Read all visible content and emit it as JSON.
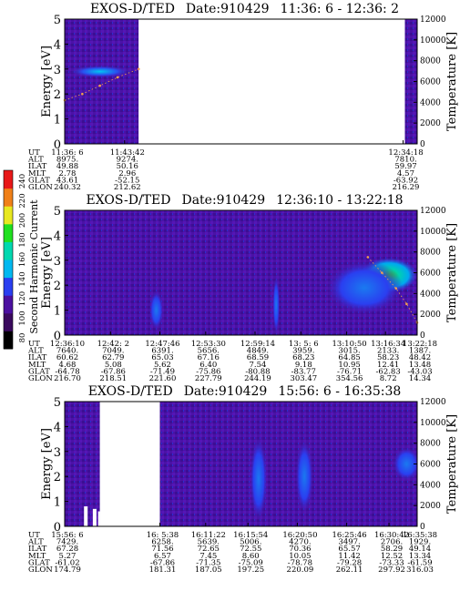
{
  "colorbar": {
    "label": "Second Harmonic Current",
    "ticks": [
      "80",
      "100",
      "120",
      "140",
      "160",
      "180",
      "200",
      "220",
      "240"
    ],
    "colors": [
      "#000000",
      "#3a0a5e",
      "#4b10a0",
      "#2a3ff0",
      "#00b8f0",
      "#00d8b0",
      "#20e020",
      "#e8e820",
      "#f08018",
      "#e81818"
    ]
  },
  "chart_data": [
    {
      "type": "heatmap",
      "title_parts": [
        "EXOS-D/TED",
        "Date:910429",
        "11:36: 6 - 12:36: 2"
      ],
      "ylabel": "Energy [eV]",
      "y2label": "Temperature [K]",
      "ylim": [
        0,
        5
      ],
      "y_ticks": [
        "0",
        "1",
        "2",
        "3",
        "4",
        "5"
      ],
      "y2lim": [
        0,
        12000
      ],
      "y2_ticks": [
        "0",
        "2000",
        "4000",
        "6000",
        "8000",
        "10000",
        "12000"
      ],
      "data_intervals": [
        [
          0.0,
          0.21
        ],
        [
          0.965,
          1.0
        ]
      ],
      "features": [
        {
          "x": 0.1,
          "y": 2.9,
          "width": 0.18,
          "height": 0.5,
          "intensity": "cyan"
        }
      ],
      "temperature_trace": [
        {
          "x": 0.0,
          "y": 4200
        },
        {
          "x": 0.05,
          "y": 4800
        },
        {
          "x": 0.1,
          "y": 5600
        },
        {
          "x": 0.15,
          "y": 6400
        },
        {
          "x": 0.21,
          "y": 7200
        }
      ],
      "table_labels": [
        "UT",
        "ALT",
        "ILAT",
        "MLT",
        "GLAT",
        "GLON"
      ],
      "table": [
        {
          "x": 0.0,
          "values": [
            "11:36: 6",
            "8975.",
            "49.88",
            "2.78",
            "43.61",
            "240.32"
          ]
        },
        {
          "x": 0.17,
          "values": [
            "11:43:42",
            "9274.",
            "50.16",
            "2.96",
            "-52.15",
            "212.62"
          ]
        },
        {
          "x": 0.96,
          "values": [
            "12:34:18",
            "7810.",
            "59.97",
            "4.57",
            "-63.92",
            "216.29"
          ]
        }
      ]
    },
    {
      "type": "heatmap",
      "title_parts": [
        "EXOS-D/TED",
        "Date:910429",
        "12:36:10 - 13:22:18"
      ],
      "ylabel": "Energy [eV]",
      "y2label": "Temperature [K]",
      "ylim": [
        0,
        5
      ],
      "y_ticks": [
        "0",
        "1",
        "2",
        "3",
        "4",
        "5"
      ],
      "y2lim": [
        0,
        12000
      ],
      "y2_ticks": [
        "0",
        "2000",
        "4000",
        "6000",
        "8000",
        "10000",
        "12000"
      ],
      "data_intervals": [
        [
          0.0,
          1.0
        ]
      ],
      "features": [
        {
          "x": 0.92,
          "y": 2.4,
          "width": 0.16,
          "height": 1.4,
          "intensity": "green"
        },
        {
          "x": 0.85,
          "y": 1.9,
          "width": 0.22,
          "height": 2.2,
          "intensity": "blue"
        },
        {
          "x": 0.6,
          "y": 1.2,
          "width": 0.02,
          "height": 2.4,
          "intensity": "blue"
        },
        {
          "x": 0.26,
          "y": 1.0,
          "width": 0.04,
          "height": 1.6,
          "intensity": "blue"
        }
      ],
      "temperature_trace": [
        {
          "x": 0.86,
          "y": 7500
        },
        {
          "x": 0.9,
          "y": 6000
        },
        {
          "x": 0.94,
          "y": 4500
        },
        {
          "x": 0.97,
          "y": 3000
        },
        {
          "x": 1.0,
          "y": 1200
        }
      ],
      "table_labels": [
        "UT",
        "ALT",
        "ILAT",
        "MLT",
        "GLAT",
        "GLON"
      ],
      "table": [
        {
          "x": 0.0,
          "values": [
            "12:36:10",
            "7640.",
            "60.62",
            "4.68",
            "-64.78",
            "216.70"
          ]
        },
        {
          "x": 0.13,
          "values": [
            "12:42: 2",
            "7049.",
            "62.79",
            "5.08",
            "-67.86",
            "218.51"
          ]
        },
        {
          "x": 0.27,
          "values": [
            "12:47:46",
            "6391.",
            "65.03",
            "5.62",
            "-71.49",
            "221.60"
          ]
        },
        {
          "x": 0.4,
          "values": [
            "12:53:30",
            "5656.",
            "67.16",
            "6.40",
            "-75.86",
            "227.79"
          ]
        },
        {
          "x": 0.54,
          "values": [
            "12:59:14",
            "4849.",
            "68.59",
            "7.54",
            "-80.88",
            "244.19"
          ]
        },
        {
          "x": 0.67,
          "values": [
            "13: 5: 6",
            "3959.",
            "68.23",
            "9.18",
            "-83.77",
            "303.47"
          ]
        },
        {
          "x": 0.8,
          "values": [
            "13:10:50",
            "3015.",
            "64.85",
            "10.95",
            "-76.71",
            "354.56"
          ]
        },
        {
          "x": 0.91,
          "values": [
            "13:16:34",
            "2133.",
            "58.23",
            "12.41",
            "-62.83",
            "8.72"
          ]
        },
        {
          "x": 1.0,
          "values": [
            "13:22:18",
            "1387.",
            "48.42",
            "13.48",
            "-43.03",
            "14.34"
          ]
        }
      ]
    },
    {
      "type": "heatmap",
      "title_parts": [
        "EXOS-D/TED",
        "Date:910429",
        "15:56: 6 - 16:35:38"
      ],
      "ylabel": "Energy [eV]",
      "y2label": "Temperature [K]",
      "ylim": [
        0,
        5
      ],
      "y_ticks": [
        "0",
        "1",
        "2",
        "3",
        "4",
        "5"
      ],
      "y2lim": [
        0,
        12000
      ],
      "y2_ticks": [
        "0",
        "2000",
        "4000",
        "6000",
        "8000",
        "10000",
        "12000"
      ],
      "data_intervals": [
        [
          0.0,
          0.1
        ],
        [
          0.27,
          1.0
        ]
      ],
      "features": [
        {
          "x": 0.55,
          "y": 1.9,
          "width": 0.05,
          "height": 3.4,
          "intensity": "blue"
        },
        {
          "x": 0.68,
          "y": 2.0,
          "width": 0.05,
          "height": 3.0,
          "intensity": "blue"
        },
        {
          "x": 0.97,
          "y": 2.5,
          "width": 0.08,
          "height": 1.4,
          "intensity": "blue"
        }
      ],
      "temperature_trace": [],
      "table_labels": [
        "UT",
        "ALT",
        "ILAT",
        "MLT",
        "GLAT",
        "GLON"
      ],
      "table": [
        {
          "x": 0.0,
          "values": [
            "15:56: 6",
            "7429.",
            "67.28",
            "5.27",
            "-61.02",
            "174.79"
          ]
        },
        {
          "x": 0.27,
          "values": [
            "16: 5:38",
            "6258.",
            "71.56",
            "6.57",
            "-67.86",
            "181.31"
          ]
        },
        {
          "x": 0.4,
          "values": [
            "16:11:22",
            "5639.",
            "72.65",
            "7.45",
            "-71.35",
            "187.05"
          ]
        },
        {
          "x": 0.52,
          "values": [
            "16:15:54",
            "5006.",
            "72.55",
            "8.60",
            "-75.09",
            "197.25"
          ]
        },
        {
          "x": 0.66,
          "values": [
            "16:20:50",
            "4270.",
            "70.36",
            "10.05",
            "-78.78",
            "220.09"
          ]
        },
        {
          "x": 0.8,
          "values": [
            "16:25:46",
            "3497.",
            "65.57",
            "11.42",
            "-79.28",
            "262.11"
          ]
        },
        {
          "x": 0.92,
          "values": [
            "16:30:42",
            "2706.",
            "58.29",
            "12.52",
            "-73.33",
            "297.92"
          ]
        },
        {
          "x": 1.0,
          "values": [
            "16:35:38",
            "1929.",
            "49.14",
            "13.34",
            "-61.59",
            "316.03"
          ]
        }
      ]
    }
  ]
}
